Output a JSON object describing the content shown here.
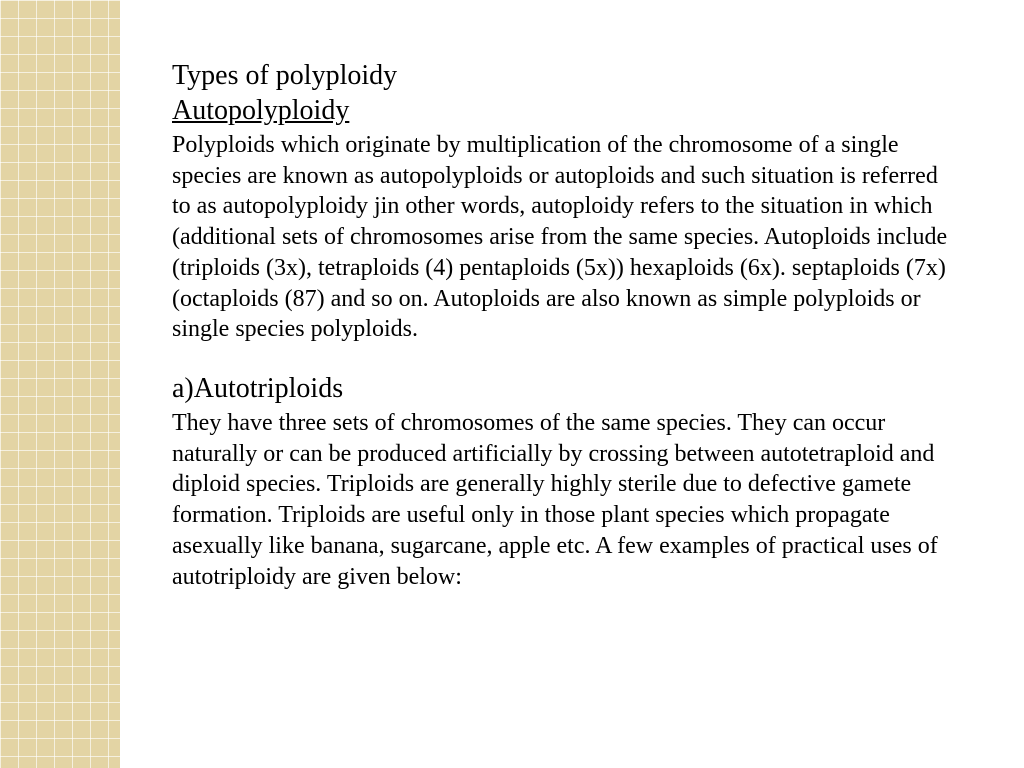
{
  "slide": {
    "background_color": "#ffffff",
    "border": {
      "color": "#e3d4a4",
      "grid_line_color": "#f5efdb",
      "grid_cell": 18
    },
    "text_color": "#000000",
    "title_fontsize": 28,
    "body_fontsize": 24,
    "font_family": "Times New Roman"
  },
  "heading": "Types of polyploidy",
  "subheading": "Autopolyploidy",
  "paragraph1": "Polyploids which originate by multiplication of the chromosome of a single species are known as autopolyploids or autoploids and such situation is referred to as autopolyploidy jin other words, autoploidy refers to the situation in which (additional sets of chromosomes arise from the same species. Autoploids include (triploids (3x), tetraploids (4) pentaploids (5x)) hexaploids (6x). septaploids (7x) (octaploids (87) and so on. Autoploids are also known as simple polyploids or single species polyploids.",
  "section_a_head": "a)Autotriploids",
  "paragraph2": "They have three sets of chromosomes of the same species. They can occur naturally or can be produced artificially by crossing between autotetraploid and diploid species. Triploids are generally highly sterile due to defective gamete  formation. Triploids are useful only in those plant species which propagate asexually like banana, sugarcane, apple etc. A few examples of practical uses of autotriploidy are given below:"
}
